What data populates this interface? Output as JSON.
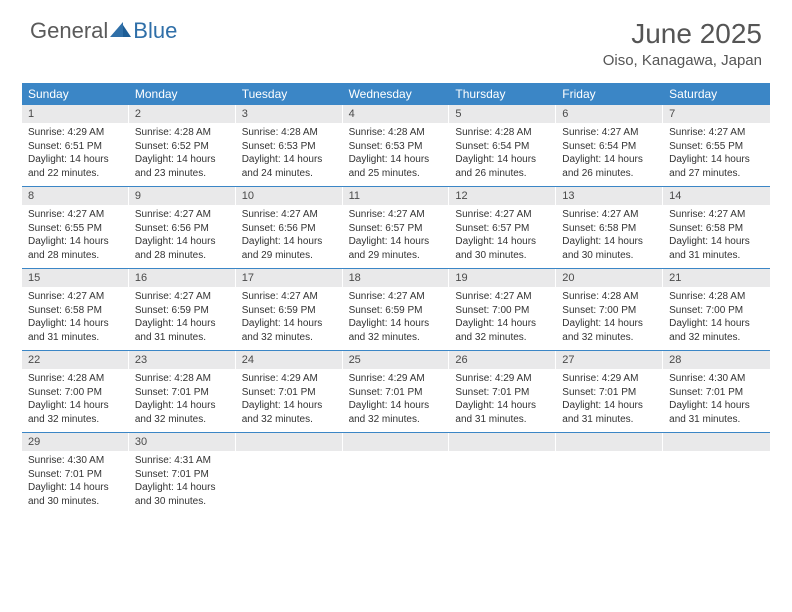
{
  "brand": {
    "part1": "General",
    "part2": "Blue"
  },
  "colors": {
    "header_bg": "#3b86c6",
    "daynum_bg": "#e9e9ea",
    "text": "#333333",
    "title": "#555555",
    "logo": "#5a5a5a",
    "accent": "#2f6fa8"
  },
  "title": "June 2025",
  "location": "Oiso, Kanagawa, Japan",
  "weekdays": [
    "Sunday",
    "Monday",
    "Tuesday",
    "Wednesday",
    "Thursday",
    "Friday",
    "Saturday"
  ],
  "weeks": [
    [
      {
        "n": "1",
        "sr": "4:29 AM",
        "ss": "6:51 PM",
        "dl": "14 hours and 22 minutes."
      },
      {
        "n": "2",
        "sr": "4:28 AM",
        "ss": "6:52 PM",
        "dl": "14 hours and 23 minutes."
      },
      {
        "n": "3",
        "sr": "4:28 AM",
        "ss": "6:53 PM",
        "dl": "14 hours and 24 minutes."
      },
      {
        "n": "4",
        "sr": "4:28 AM",
        "ss": "6:53 PM",
        "dl": "14 hours and 25 minutes."
      },
      {
        "n": "5",
        "sr": "4:28 AM",
        "ss": "6:54 PM",
        "dl": "14 hours and 26 minutes."
      },
      {
        "n": "6",
        "sr": "4:27 AM",
        "ss": "6:54 PM",
        "dl": "14 hours and 26 minutes."
      },
      {
        "n": "7",
        "sr": "4:27 AM",
        "ss": "6:55 PM",
        "dl": "14 hours and 27 minutes."
      }
    ],
    [
      {
        "n": "8",
        "sr": "4:27 AM",
        "ss": "6:55 PM",
        "dl": "14 hours and 28 minutes."
      },
      {
        "n": "9",
        "sr": "4:27 AM",
        "ss": "6:56 PM",
        "dl": "14 hours and 28 minutes."
      },
      {
        "n": "10",
        "sr": "4:27 AM",
        "ss": "6:56 PM",
        "dl": "14 hours and 29 minutes."
      },
      {
        "n": "11",
        "sr": "4:27 AM",
        "ss": "6:57 PM",
        "dl": "14 hours and 29 minutes."
      },
      {
        "n": "12",
        "sr": "4:27 AM",
        "ss": "6:57 PM",
        "dl": "14 hours and 30 minutes."
      },
      {
        "n": "13",
        "sr": "4:27 AM",
        "ss": "6:58 PM",
        "dl": "14 hours and 30 minutes."
      },
      {
        "n": "14",
        "sr": "4:27 AM",
        "ss": "6:58 PM",
        "dl": "14 hours and 31 minutes."
      }
    ],
    [
      {
        "n": "15",
        "sr": "4:27 AM",
        "ss": "6:58 PM",
        "dl": "14 hours and 31 minutes."
      },
      {
        "n": "16",
        "sr": "4:27 AM",
        "ss": "6:59 PM",
        "dl": "14 hours and 31 minutes."
      },
      {
        "n": "17",
        "sr": "4:27 AM",
        "ss": "6:59 PM",
        "dl": "14 hours and 32 minutes."
      },
      {
        "n": "18",
        "sr": "4:27 AM",
        "ss": "6:59 PM",
        "dl": "14 hours and 32 minutes."
      },
      {
        "n": "19",
        "sr": "4:27 AM",
        "ss": "7:00 PM",
        "dl": "14 hours and 32 minutes."
      },
      {
        "n": "20",
        "sr": "4:28 AM",
        "ss": "7:00 PM",
        "dl": "14 hours and 32 minutes."
      },
      {
        "n": "21",
        "sr": "4:28 AM",
        "ss": "7:00 PM",
        "dl": "14 hours and 32 minutes."
      }
    ],
    [
      {
        "n": "22",
        "sr": "4:28 AM",
        "ss": "7:00 PM",
        "dl": "14 hours and 32 minutes."
      },
      {
        "n": "23",
        "sr": "4:28 AM",
        "ss": "7:01 PM",
        "dl": "14 hours and 32 minutes."
      },
      {
        "n": "24",
        "sr": "4:29 AM",
        "ss": "7:01 PM",
        "dl": "14 hours and 32 minutes."
      },
      {
        "n": "25",
        "sr": "4:29 AM",
        "ss": "7:01 PM",
        "dl": "14 hours and 32 minutes."
      },
      {
        "n": "26",
        "sr": "4:29 AM",
        "ss": "7:01 PM",
        "dl": "14 hours and 31 minutes."
      },
      {
        "n": "27",
        "sr": "4:29 AM",
        "ss": "7:01 PM",
        "dl": "14 hours and 31 minutes."
      },
      {
        "n": "28",
        "sr": "4:30 AM",
        "ss": "7:01 PM",
        "dl": "14 hours and 31 minutes."
      }
    ],
    [
      {
        "n": "29",
        "sr": "4:30 AM",
        "ss": "7:01 PM",
        "dl": "14 hours and 30 minutes."
      },
      {
        "n": "30",
        "sr": "4:31 AM",
        "ss": "7:01 PM",
        "dl": "14 hours and 30 minutes."
      },
      null,
      null,
      null,
      null,
      null
    ]
  ],
  "labels": {
    "sunrise": "Sunrise:",
    "sunset": "Sunset:",
    "daylight": "Daylight:"
  }
}
